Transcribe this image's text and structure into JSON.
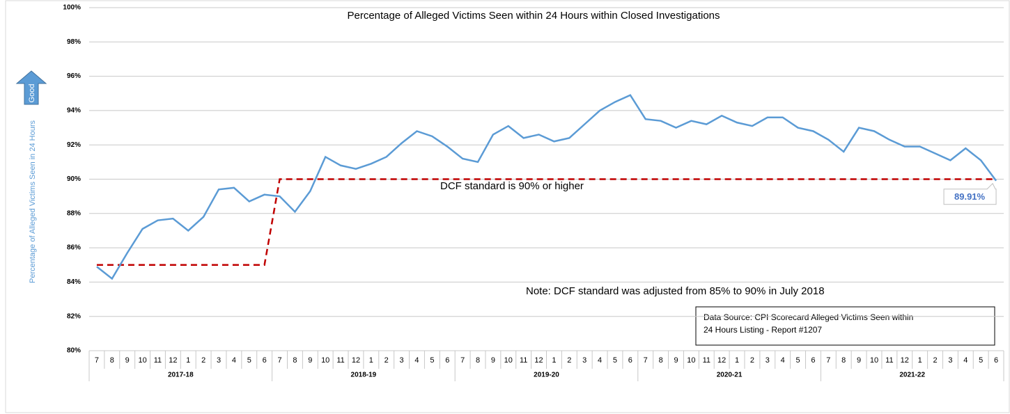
{
  "chart_data": {
    "type": "line",
    "title": "Percentage of Alleged Victims Seen within 24 Hours within Closed Investigations",
    "y_label": "Percentage of Alleged Victims Seen in 24 Hours",
    "direction_label": "Good",
    "categories": [
      "7",
      "8",
      "9",
      "10",
      "11",
      "12",
      "1",
      "2",
      "3",
      "4",
      "5",
      "6",
      "7",
      "8",
      "9",
      "10",
      "11",
      "12",
      "1",
      "2",
      "3",
      "4",
      "5",
      "6",
      "7",
      "8",
      "9",
      "10",
      "11",
      "12",
      "1",
      "2",
      "3",
      "4",
      "5",
      "6",
      "7",
      "8",
      "9",
      "10",
      "11",
      "12",
      "1",
      "2",
      "3",
      "4",
      "5",
      "6",
      "7",
      "8",
      "9",
      "10",
      "11",
      "12",
      "1",
      "2",
      "3",
      "4",
      "5",
      "6"
    ],
    "category_groups": [
      "2017-18",
      "2018-19",
      "2019-20",
      "2020-21",
      "2021-22"
    ],
    "series": [
      {
        "color": "#5b9bd5",
        "values": [
          84.9,
          84.2,
          85.7,
          87.1,
          87.6,
          87.7,
          87.0,
          87.8,
          89.4,
          89.5,
          88.7,
          89.1,
          89.0,
          88.1,
          89.3,
          91.3,
          90.8,
          90.6,
          90.9,
          91.3,
          92.1,
          92.8,
          92.5,
          91.9,
          91.2,
          91.0,
          92.6,
          93.1,
          92.4,
          92.6,
          92.2,
          92.4,
          93.2,
          94.0,
          94.5,
          94.9,
          93.5,
          93.4,
          93.0,
          93.4,
          93.2,
          93.7,
          93.3,
          93.1,
          93.6,
          93.6,
          93.0,
          92.8,
          92.3,
          91.6,
          93.0,
          92.8,
          92.3,
          91.9,
          91.9,
          91.5,
          91.1,
          91.8,
          91.1,
          89.91
        ],
        "value_labels": [
          null,
          null,
          null,
          null,
          null,
          null,
          null,
          null,
          null,
          null,
          null,
          null,
          null,
          null,
          null,
          null,
          null,
          null,
          null,
          null,
          null,
          null,
          null,
          null,
          null,
          null,
          null,
          null,
          null,
          null,
          null,
          null,
          null,
          null,
          null,
          null,
          null,
          null,
          null,
          null,
          null,
          null,
          null,
          null,
          null,
          null,
          null,
          null,
          null,
          null,
          null,
          null,
          null,
          null,
          null,
          null,
          null,
          null,
          null,
          "89.91%"
        ]
      }
    ],
    "standard": {
      "color": "#c00000",
      "values": [
        85,
        85,
        85,
        85,
        85,
        85,
        85,
        85,
        85,
        85,
        85,
        85,
        90,
        90,
        90,
        90,
        90,
        90,
        90,
        90,
        90,
        90,
        90,
        90,
        90,
        90,
        90,
        90,
        90,
        90,
        90,
        90,
        90,
        90,
        90,
        90,
        90,
        90,
        90,
        90,
        90,
        90,
        90,
        90,
        90,
        90,
        90,
        90,
        90,
        90,
        90,
        90,
        90,
        90,
        90,
        90,
        90,
        90,
        90,
        90
      ]
    },
    "ylim": [
      80,
      100
    ],
    "yticks": [
      {
        "value": 80,
        "label": "80%"
      },
      {
        "value": 82,
        "label": "82%"
      },
      {
        "value": 84,
        "label": "84%"
      },
      {
        "value": 86,
        "label": "86%"
      },
      {
        "value": 88,
        "label": "88%"
      },
      {
        "value": 90,
        "label": "90%"
      },
      {
        "value": 92,
        "label": "92%"
      },
      {
        "value": 94,
        "label": "94%"
      },
      {
        "value": 96,
        "label": "96%"
      },
      {
        "value": 98,
        "label": "98%"
      },
      {
        "value": 100,
        "label": "100%"
      }
    ],
    "grid": true,
    "annotations": [
      "DCF standard is 90% or higher",
      "Note: DCF standard was adjusted from 85% to 90% in July 2018"
    ],
    "source": [
      "Data Source: CPI Scorecard Alleged Victims Seen within",
      "24 Hours Listing - Report #1207"
    ]
  }
}
